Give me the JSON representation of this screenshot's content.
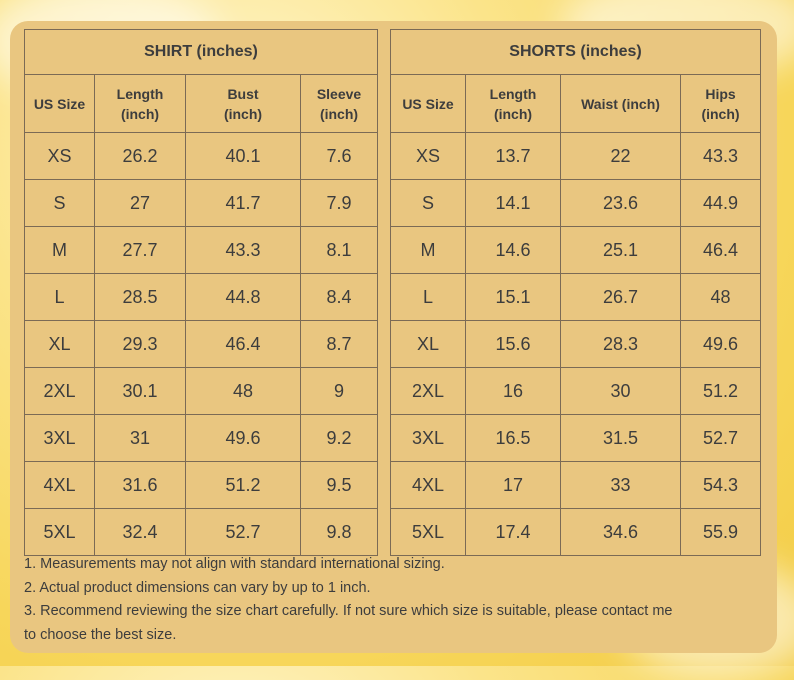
{
  "shirt": {
    "title": "SHIRT  (inches)",
    "headers": {
      "size": "US Size",
      "c1a": "Length",
      "c1b": "(inch)",
      "c2a": "Bust",
      "c2b": "(inch)",
      "c3a": "Sleeve",
      "c3b": "(inch)"
    },
    "rows": [
      [
        "XS",
        "26.2",
        "40.1",
        "7.6"
      ],
      [
        "S",
        "27",
        "41.7",
        "7.9"
      ],
      [
        "M",
        "27.7",
        "43.3",
        "8.1"
      ],
      [
        "L",
        "28.5",
        "44.8",
        "8.4"
      ],
      [
        "XL",
        "29.3",
        "46.4",
        "8.7"
      ],
      [
        "2XL",
        "30.1",
        "48",
        "9"
      ],
      [
        "3XL",
        "31",
        "49.6",
        "9.2"
      ],
      [
        "4XL",
        "31.6",
        "51.2",
        "9.5"
      ],
      [
        "5XL",
        "32.4",
        "52.7",
        "9.8"
      ]
    ]
  },
  "shorts": {
    "title": "SHORTS  (inches)",
    "headers": {
      "size": "US Size",
      "c1a": "Length",
      "c1b": "(inch)",
      "c2a": "Waist (inch)",
      "c3a": "Hips",
      "c3b": "(inch)"
    },
    "rows": [
      [
        "XS",
        "13.7",
        "22",
        "43.3"
      ],
      [
        "S",
        "14.1",
        "23.6",
        "44.9"
      ],
      [
        "M",
        "14.6",
        "25.1",
        "46.4"
      ],
      [
        "L",
        "15.1",
        "26.7",
        "48"
      ],
      [
        "XL",
        "15.6",
        "28.3",
        "49.6"
      ],
      [
        "2XL",
        "16",
        "30",
        "51.2"
      ],
      [
        "3XL",
        "16.5",
        "31.5",
        "52.7"
      ],
      [
        "4XL",
        "17",
        "33",
        "54.3"
      ],
      [
        "5XL",
        "17.4",
        "34.6",
        "55.9"
      ]
    ]
  },
  "notes": {
    "n1": "1. Measurements may not align with standard international sizing.",
    "n2": "2. Actual product dimensions can vary by up to 1 inch.",
    "n3a": "3. Recommend reviewing the size chart carefully. If not sure which size is suitable, please contact me",
    "n3b": "to choose the best size."
  },
  "colors": {
    "card": "#e9c680",
    "text": "#3d3d3d",
    "border": "#7b6a55",
    "background": "#f7d65a"
  }
}
